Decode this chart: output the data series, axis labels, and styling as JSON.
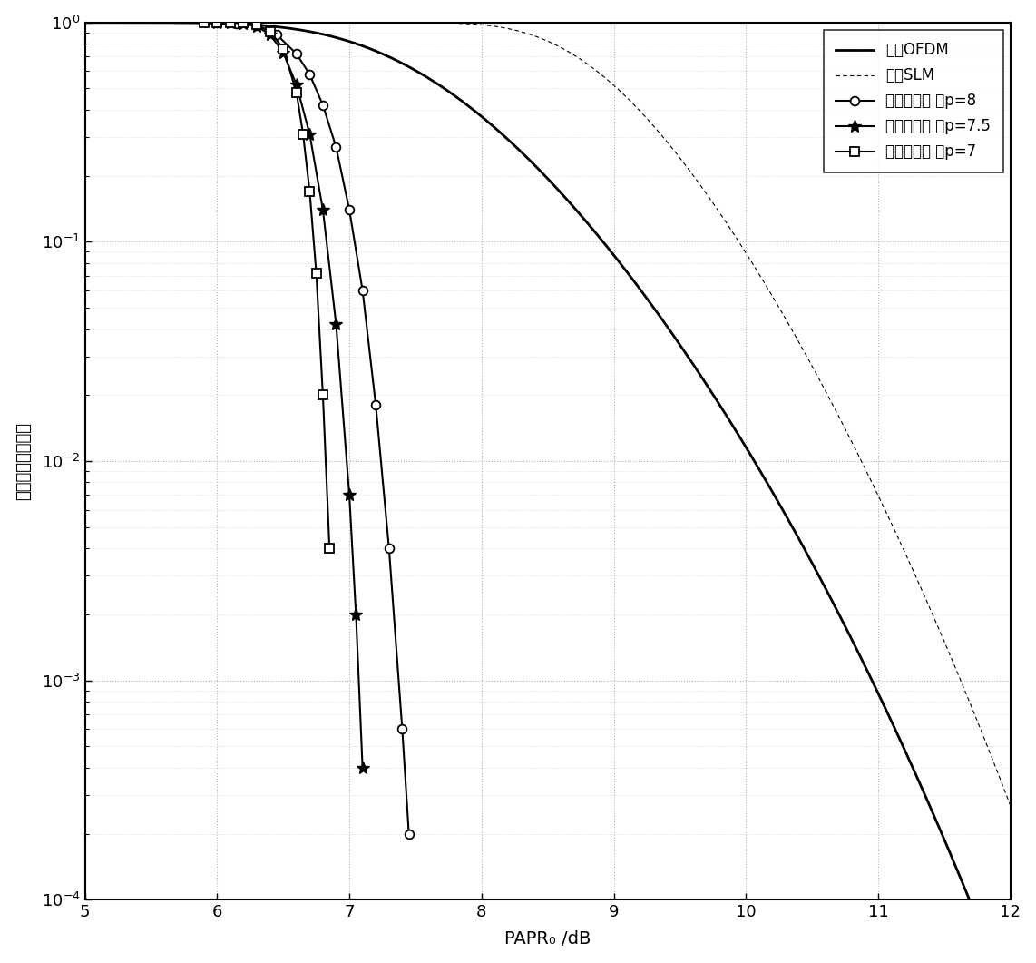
{
  "title": "",
  "xlabel": "PAPR₀ /dB",
  "ylabel": "互补累积分布函数",
  "xlim": [
    5,
    12
  ],
  "ylim_log": [
    -4,
    0
  ],
  "legend_labels": [
    "原始OFDM",
    "原始SLM",
    "本发明方案 当p=8",
    "本发明方案 当p=7.5",
    "本发明方案 当p=7"
  ],
  "bg_color": "#ffffff",
  "grid_color": "#aaaaaa"
}
